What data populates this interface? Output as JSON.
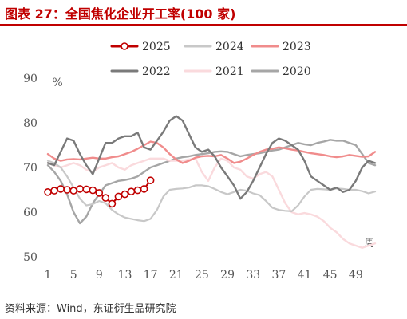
{
  "figure": {
    "title": "图表 27：全国焦化企业开工率(100 家)",
    "source": "资料来源：Wind，东证衍生品研究院"
  },
  "colors": {
    "title": "#c00000",
    "axis_text": "#555555"
  },
  "chart_data": {
    "type": "line",
    "title": "",
    "xlabel": "周",
    "ylabel": "%",
    "xlim": [
      1,
      53
    ],
    "ylim": [
      50,
      90
    ],
    "xticks": [
      1,
      5,
      9,
      13,
      17,
      21,
      25,
      29,
      33,
      37,
      41,
      45,
      49
    ],
    "yticks": [
      50,
      60,
      70,
      80,
      90
    ],
    "grid": false,
    "legend_placement": "top",
    "series": [
      {
        "name": "2025",
        "color": "#c00000",
        "width": 2.2,
        "markers": true,
        "x": [
          1,
          2,
          3,
          4,
          5,
          6,
          7,
          8,
          9,
          10,
          11,
          12,
          13,
          14,
          15,
          16,
          17
        ],
        "y": [
          64.5,
          64.8,
          65.2,
          65.0,
          64.8,
          65.2,
          65.1,
          64.9,
          64.3,
          63.2,
          61.9,
          63.5,
          64.0,
          64.6,
          64.9,
          65.2,
          67.1
        ]
      },
      {
        "name": "2024",
        "color": "#c8c8c8",
        "width": 2.2,
        "markers": false,
        "x": [
          1,
          2,
          3,
          4,
          5,
          6,
          7,
          8,
          9,
          10,
          11,
          12,
          13,
          14,
          15,
          16,
          17,
          18,
          19,
          20,
          21,
          22,
          23,
          24,
          25,
          26,
          27,
          28,
          29,
          30,
          31,
          32,
          33,
          34,
          35,
          36,
          37,
          38,
          39,
          40,
          41,
          42,
          43,
          44,
          45,
          46,
          47,
          48,
          49,
          50,
          51,
          52
        ],
        "y": [
          71.5,
          71.0,
          70.0,
          68.0,
          65.5,
          63.0,
          61.5,
          61.8,
          62.5,
          62.0,
          60.5,
          59.5,
          58.8,
          58.5,
          58.2,
          58.0,
          58.5,
          60.5,
          63.5,
          65.0,
          65.2,
          65.3,
          65.5,
          66.0,
          66.0,
          65.8,
          65.2,
          64.5,
          64.0,
          64.5,
          65.0,
          64.8,
          64.2,
          63.8,
          62.5,
          61.0,
          60.5,
          60.3,
          60.2,
          61.5,
          63.5,
          65.0,
          65.2,
          65.1,
          65.0,
          65.3,
          65.2,
          65.0,
          65.0,
          64.7,
          64.2,
          64.6
        ]
      },
      {
        "name": "2023",
        "color": "#f08c8c",
        "width": 2.4,
        "markers": false,
        "x": [
          1,
          2,
          3,
          4,
          5,
          6,
          7,
          8,
          9,
          10,
          11,
          12,
          13,
          14,
          15,
          16,
          17,
          18,
          19,
          20,
          21,
          22,
          23,
          24,
          25,
          26,
          27,
          28,
          29,
          30,
          31,
          32,
          33,
          34,
          35,
          36,
          37,
          38,
          39,
          40,
          41,
          42,
          43,
          44,
          45,
          46,
          47,
          48,
          49,
          50,
          51,
          52
        ],
        "y": [
          73.0,
          72.0,
          71.5,
          71.8,
          71.9,
          71.8,
          72.0,
          72.2,
          72.0,
          72.0,
          72.3,
          72.5,
          73.0,
          73.5,
          74.2,
          75.0,
          75.8,
          75.5,
          74.5,
          73.0,
          71.8,
          71.0,
          71.5,
          72.2,
          72.5,
          72.6,
          72.5,
          72.8,
          72.0,
          71.0,
          71.3,
          72.0,
          72.8,
          73.5,
          74.0,
          74.2,
          74.5,
          74.3,
          74.0,
          73.8,
          73.5,
          73.2,
          73.0,
          72.8,
          72.5,
          72.3,
          72.5,
          72.8,
          72.6,
          72.4,
          72.5,
          73.5
        ]
      },
      {
        "name": "2022",
        "color": "#7a7a7a",
        "width": 2.4,
        "markers": false,
        "x": [
          1,
          2,
          3,
          4,
          5,
          6,
          7,
          8,
          9,
          10,
          11,
          12,
          13,
          14,
          15,
          16,
          17,
          18,
          19,
          20,
          21,
          22,
          23,
          24,
          25,
          26,
          27,
          28,
          29,
          30,
          31,
          32,
          33,
          34,
          35,
          36,
          37,
          38,
          39,
          40,
          41,
          42,
          43,
          44,
          45,
          46,
          47,
          48,
          49,
          50,
          51,
          52
        ],
        "y": [
          71.0,
          70.5,
          73.5,
          76.5,
          76.0,
          73.0,
          70.5,
          68.5,
          72.0,
          75.5,
          75.5,
          76.5,
          77.0,
          77.0,
          77.8,
          74.5,
          74.0,
          76.0,
          78.0,
          80.5,
          81.5,
          80.5,
          77.5,
          74.5,
          73.5,
          74.0,
          72.5,
          70.0,
          68.0,
          66.0,
          63.0,
          64.5,
          67.0,
          70.0,
          73.0,
          75.5,
          76.5,
          76.0,
          75.0,
          74.0,
          71.5,
          68.0,
          67.0,
          66.0,
          65.0,
          65.5,
          64.5,
          65.0,
          67.0,
          70.0,
          71.5,
          71.0
        ]
      },
      {
        "name": "2021",
        "color": "#fadadd",
        "width": 2.4,
        "markers": false,
        "x": [
          1,
          2,
          3,
          4,
          5,
          6,
          7,
          8,
          9,
          10,
          11,
          12,
          13,
          14,
          15,
          16,
          17,
          18,
          19,
          20,
          21,
          22,
          23,
          24,
          25,
          26,
          27,
          28,
          29,
          30,
          31,
          32,
          33,
          34,
          35,
          36,
          37,
          38,
          39,
          40,
          41,
          42,
          43,
          44,
          45,
          46,
          47,
          48,
          49,
          50,
          51,
          52
        ],
        "y": [
          71.0,
          70.5,
          70.0,
          70.5,
          71.0,
          70.5,
          69.5,
          69.0,
          70.0,
          70.5,
          71.0,
          70.0,
          69.5,
          70.5,
          71.0,
          71.5,
          72.0,
          72.0,
          72.0,
          71.5,
          71.5,
          71.5,
          71.8,
          72.0,
          69.0,
          67.0,
          70.0,
          72.0,
          71.5,
          70.0,
          69.5,
          68.0,
          67.5,
          68.5,
          69.0,
          68.0,
          65.0,
          62.0,
          60.0,
          59.5,
          59.8,
          59.5,
          59.0,
          58.0,
          56.5,
          55.5,
          54.0,
          53.0,
          52.5,
          52.0,
          52.5,
          53.0
        ]
      },
      {
        "name": "2020",
        "color": "#a6a6a6",
        "width": 2.4,
        "markers": false,
        "x": [
          1,
          2,
          3,
          4,
          5,
          6,
          7,
          8,
          9,
          10,
          11,
          12,
          13,
          14,
          15,
          16,
          17,
          18,
          19,
          20,
          21,
          22,
          23,
          24,
          25,
          26,
          27,
          28,
          29,
          30,
          31,
          32,
          33,
          34,
          35,
          36,
          37,
          38,
          39,
          40,
          41,
          42,
          43,
          44,
          45,
          46,
          47,
          48,
          49,
          50,
          51,
          52
        ],
        "y": [
          70.5,
          69.0,
          67.0,
          64.0,
          60.0,
          57.5,
          59.0,
          62.0,
          64.0,
          66.0,
          66.5,
          67.0,
          67.2,
          67.5,
          68.0,
          69.0,
          70.0,
          70.5,
          71.0,
          71.5,
          72.0,
          72.3,
          72.5,
          72.8,
          73.0,
          73.2,
          73.5,
          73.6,
          73.5,
          73.0,
          72.5,
          72.8,
          73.0,
          73.2,
          73.5,
          73.8,
          74.0,
          74.5,
          75.0,
          75.5,
          75.2,
          75.0,
          75.5,
          75.8,
          76.2,
          76.0,
          76.0,
          75.5,
          75.0,
          73.0,
          71.0,
          70.5
        ]
      }
    ]
  }
}
